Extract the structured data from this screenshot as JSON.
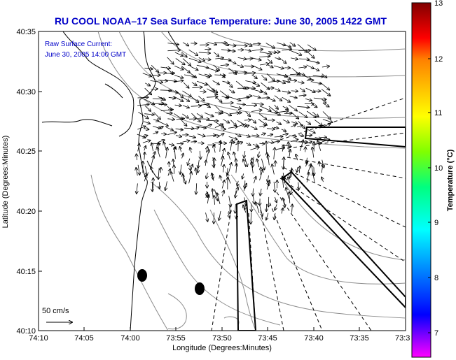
{
  "title": "RU COOL  NOAA–17  Sea Surface Temperature:  June 30, 2005 1422 GMT",
  "annotation": {
    "line1": "Raw Surface Current:",
    "line2": "June 30, 2005 14:00 GMT"
  },
  "scale_label": "50 cm/s",
  "axes": {
    "xlabel": "Longitude (Degrees:Minutes)",
    "ylabel": "Latitude (Degrees:Minutes)",
    "xticks": [
      "74:10",
      "74:05",
      "74:00",
      "73:55",
      "73:50",
      "73:45",
      "73:40",
      "73:35",
      "73:3"
    ],
    "yticks": [
      "40:35",
      "40:30",
      "40:25",
      "40:20",
      "40:15",
      "40:10"
    ]
  },
  "colorbar": {
    "label": "Temperature (°C)",
    "ticks": [
      "13",
      "12",
      "11",
      "10",
      "9",
      "8",
      "7"
    ],
    "min": 6.4,
    "max": 13,
    "colors": [
      "#ff00ff",
      "#8000ff",
      "#0000ff",
      "#0080ff",
      "#00ffff",
      "#00ff80",
      "#80ff00",
      "#ffff00",
      "#ffc000",
      "#ff8000",
      "#ff0000",
      "#c00000",
      "#800000"
    ]
  }
}
